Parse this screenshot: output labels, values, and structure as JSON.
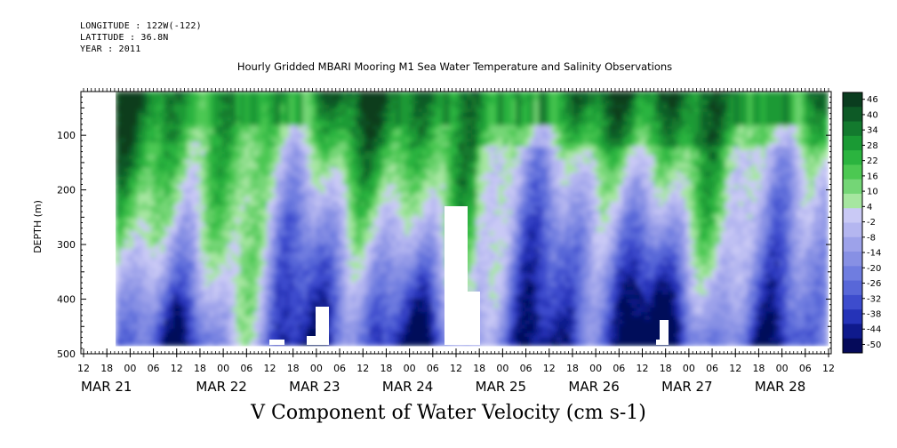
{
  "header": {
    "longitude": "LONGITUDE : 122W(-122)",
    "latitude": "LATITUDE : 36.8N",
    "year": "YEAR : 2011"
  },
  "chart_data": {
    "type": "heatmap",
    "title": "Hourly Gridded MBARI Mooring M1 Sea Water Temperature and Salinity Observations",
    "xlabel": "V Component of Water Velocity (cm s-1)",
    "ylabel": "DEPTH (m)",
    "ylim": [
      500,
      20
    ],
    "y_ticks": [
      100,
      200,
      300,
      400,
      500
    ],
    "x_hour_ticks": [
      "12",
      "18",
      "00",
      "06",
      "12",
      "18",
      "00",
      "06",
      "12",
      "18",
      "00",
      "06",
      "12",
      "18",
      "00",
      "06",
      "12",
      "18",
      "00",
      "06",
      "12",
      "18",
      "00",
      "06",
      "12",
      "18",
      "00",
      "06",
      "12",
      "18",
      "00",
      "06",
      "12"
    ],
    "x_date_labels": [
      "MAR 21",
      "MAR 22",
      "MAR 23",
      "MAR 24",
      "MAR 25",
      "MAR 26",
      "MAR 27",
      "MAR 28"
    ],
    "colorbar_labels": [
      "46",
      "40",
      "34",
      "28",
      "22",
      "16",
      "10",
      "4",
      "-2",
      "-8",
      "-14",
      "-20",
      "-26",
      "-32",
      "-38",
      "-44",
      "-50"
    ],
    "colorbar_colors": [
      "#0a3d1f",
      "#0d5a26",
      "#137a2e",
      "#1a9a34",
      "#2bb43f",
      "#4cc852",
      "#74d676",
      "#a6e6a0",
      "#c9c9f5",
      "#b4b6f0",
      "#9da2ea",
      "#8790e4",
      "#6f7de0",
      "#5867d8",
      "#3d4ccd",
      "#2533b8",
      "#0f1a8c",
      "#050a5a"
    ],
    "data_note_ranges": {
      "min": -50,
      "max": 46
    }
  }
}
